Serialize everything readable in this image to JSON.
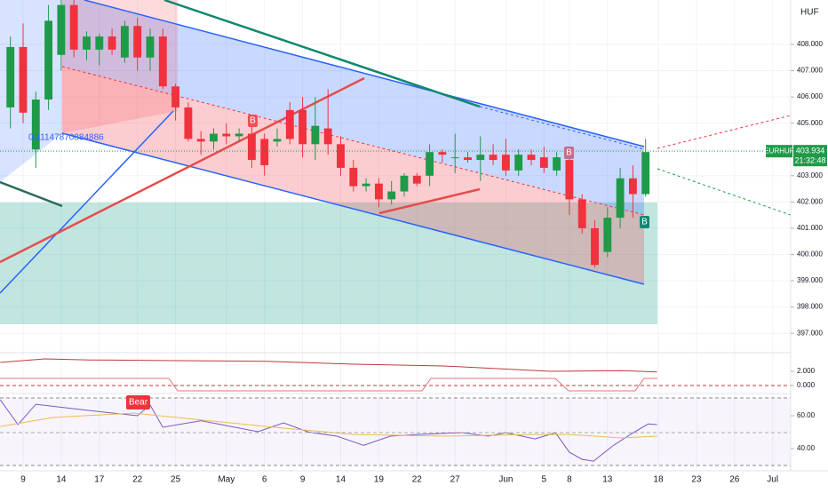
{
  "chart_data": [
    {
      "type": "candlestick",
      "currency": "HUF",
      "x": [
        -1,
        0,
        1,
        2,
        3,
        4,
        5,
        6,
        7,
        8,
        9,
        10,
        11,
        12,
        13,
        14,
        15,
        16,
        17,
        18,
        19,
        20,
        21,
        22,
        23,
        24,
        25,
        26,
        27,
        28,
        29,
        30,
        31,
        32,
        33,
        34,
        35,
        36,
        37,
        38,
        39,
        40,
        41,
        42,
        43,
        44,
        45,
        46,
        47,
        48,
        49
      ],
      "open": [
        405.6,
        407.9,
        404.0,
        405.9,
        407.6,
        409.5,
        407.8,
        407.8,
        408.3,
        407.5,
        408.7,
        407.5,
        408.3,
        406.4,
        405.6,
        404.4,
        404.3,
        404.6,
        404.5,
        404.6,
        404.4,
        404.3,
        405.5,
        405.5,
        404.2,
        404.8,
        404.2,
        403.3,
        402.6,
        402.7,
        402.1,
        402.4,
        403.0,
        403.0,
        403.9,
        403.7,
        403.7,
        403.6,
        403.8,
        403.8,
        403.2,
        403.8,
        403.7,
        403.2,
        403.6,
        402.1,
        401.0,
        400.1,
        401.4,
        402.9,
        402.3
      ],
      "high": [
        408.3,
        408.8,
        406.2,
        409.5,
        409.7,
        409.7,
        408.5,
        408.4,
        408.6,
        408.9,
        409.0,
        408.6,
        408.6,
        406.5,
        405.8,
        404.7,
        404.8,
        405.0,
        404.8,
        405.2,
        404.6,
        404.8,
        405.8,
        406.0,
        406.0,
        406.3,
        404.5,
        403.6,
        402.9,
        402.9,
        402.8,
        403.1,
        403.1,
        404.2,
        404.0,
        404.6,
        403.9,
        404.5,
        404.2,
        404.4,
        404.0,
        404.0,
        404.1,
        403.9,
        403.8,
        402.3,
        401.3,
        401.8,
        403.3,
        403.4,
        404.4
      ],
      "low": [
        404.8,
        405.0,
        403.3,
        405.5,
        407.0,
        407.5,
        407.4,
        407.2,
        407.6,
        407.3,
        407.0,
        407.0,
        406.3,
        405.1,
        404.3,
        403.8,
        404.0,
        404.2,
        404.3,
        403.3,
        403.0,
        404.1,
        404.2,
        403.7,
        403.6,
        403.8,
        403.0,
        402.4,
        402.4,
        401.8,
        401.9,
        402.2,
        402.6,
        402.6,
        403.5,
        403.1,
        403.5,
        402.8,
        403.4,
        403.0,
        403.0,
        403.4,
        403.1,
        403.0,
        401.5,
        400.8,
        399.5,
        399.9,
        401.0,
        401.4,
        402.2
      ],
      "close": [
        407.9,
        405.4,
        405.9,
        408.9,
        409.5,
        407.8,
        408.3,
        408.3,
        407.8,
        408.7,
        407.5,
        408.3,
        406.4,
        405.6,
        404.4,
        404.3,
        404.6,
        404.5,
        404.6,
        403.6,
        403.4,
        404.4,
        404.4,
        404.2,
        404.9,
        404.2,
        403.3,
        402.6,
        402.7,
        402.1,
        402.4,
        403.0,
        402.7,
        403.9,
        403.8,
        403.7,
        403.6,
        403.8,
        403.6,
        403.2,
        403.8,
        403.6,
        403.3,
        403.7,
        402.1,
        401.0,
        399.6,
        401.4,
        402.9,
        402.3,
        403.9
      ],
      "up_color": "#1f9a48",
      "down_color": "#f0323e",
      "xlim": [
        -1.818,
        60.42
      ],
      "xticks": [
        {
          "value": 0,
          "label": "9"
        },
        {
          "value": 3,
          "label": "14"
        },
        {
          "value": 6,
          "label": "17"
        },
        {
          "value": 9,
          "label": "22"
        },
        {
          "value": 12,
          "label": "25"
        },
        {
          "value": 16,
          "label": "May"
        },
        {
          "value": 19,
          "label": "6"
        },
        {
          "value": 22,
          "label": "9"
        },
        {
          "value": 25,
          "label": "14"
        },
        {
          "value": 28,
          "label": "19"
        },
        {
          "value": 31,
          "label": "22"
        },
        {
          "value": 34,
          "label": "27"
        },
        {
          "value": 38,
          "label": "Jun"
        },
        {
          "value": 41,
          "label": "5"
        },
        {
          "value": 43,
          "label": "8"
        },
        {
          "value": 46,
          "label": "13"
        },
        {
          "value": 50,
          "label": "18"
        },
        {
          "value": 53,
          "label": "23"
        },
        {
          "value": 56,
          "label": "26"
        },
        {
          "value": 59,
          "label": "Jul"
        }
      ],
      "ylim": [
        396.33,
        409.69
      ],
      "yticks": [
        {
          "value": 397,
          "label": "397.000"
        },
        {
          "value": 398,
          "label": "398.000"
        },
        {
          "value": 399,
          "label": "399.000"
        },
        {
          "value": 400,
          "label": "400.000"
        },
        {
          "value": 401,
          "label": "401.000"
        },
        {
          "value": 402,
          "label": "402.000"
        },
        {
          "value": 403,
          "label": "403.000"
        },
        {
          "value": 404,
          "label": "404.000"
        },
        {
          "value": 405,
          "label": "405.000"
        },
        {
          "value": 406,
          "label": "406.000"
        },
        {
          "value": 407,
          "label": "407.000"
        },
        {
          "value": 408,
          "label": "408.000"
        }
      ],
      "grid": true,
      "last_price": {
        "symbol": "EURHUF",
        "price": 403.934,
        "countdown": "21:32:48",
        "color": "#1f9a48"
      },
      "annotations": [
        "0.11147870884886",
        "B",
        "B",
        "B",
        "Bear"
      ]
    },
    {
      "type": "line",
      "series": [
        {
          "color": "#c0393b",
          "x": [
            -1.8,
            1.7,
            5.2,
            12.2,
            19.2,
            26.1,
            33.1,
            41.5,
            47.1,
            49.9
          ],
          "values": [
            3.25,
            3.75,
            3.6,
            3.5,
            3.4,
            3.0,
            2.75,
            2.0,
            2.1,
            1.9
          ]
        }
      ],
      "xlim": [
        -1.818,
        60.42
      ],
      "ylim": [
        -1.0,
        4.25
      ],
      "yticks": [
        {
          "value": 2,
          "label": "2.000"
        },
        {
          "value": 0,
          "label": "0.000"
        }
      ]
    },
    {
      "type": "line",
      "series": [
        {
          "color": "#7e57c2",
          "x": [
            -1.8,
            -0.4,
            1,
            5.2,
            9,
            10,
            11,
            14,
            18.5,
            20.5,
            22.5,
            24.7,
            26.8,
            28.9,
            31,
            34.6,
            36.6,
            38,
            40.3,
            41.9,
            43,
            44,
            44.9,
            46.4,
            47.8,
            49.2,
            49.9
          ],
          "values": [
            69.7,
            54.6,
            67,
            63.2,
            60,
            66.5,
            53,
            57,
            50.3,
            55.7,
            50,
            47.6,
            42,
            47.6,
            48.6,
            49.7,
            47.6,
            49.7,
            45.9,
            49.7,
            37.8,
            33.5,
            32.4,
            41.6,
            48.6,
            55,
            54.6
          ]
        },
        {
          "color": "#f5c24c",
          "x": [
            -1.8,
            2.4,
            8.7,
            15.7,
            20.6,
            26.1,
            33.1,
            40.1,
            43,
            47.1,
            49.9
          ],
          "values": [
            53.5,
            59,
            61.6,
            56.2,
            52.4,
            48.6,
            47.6,
            48.6,
            48.6,
            46.5,
            47.6
          ]
        }
      ],
      "xlim": [
        -1.818,
        60.42
      ],
      "ylim": [
        26.5,
        73
      ],
      "yticks": [
        {
          "value": 60,
          "label": "60.00"
        },
        {
          "value": 40,
          "label": "40.00"
        }
      ]
    }
  ]
}
